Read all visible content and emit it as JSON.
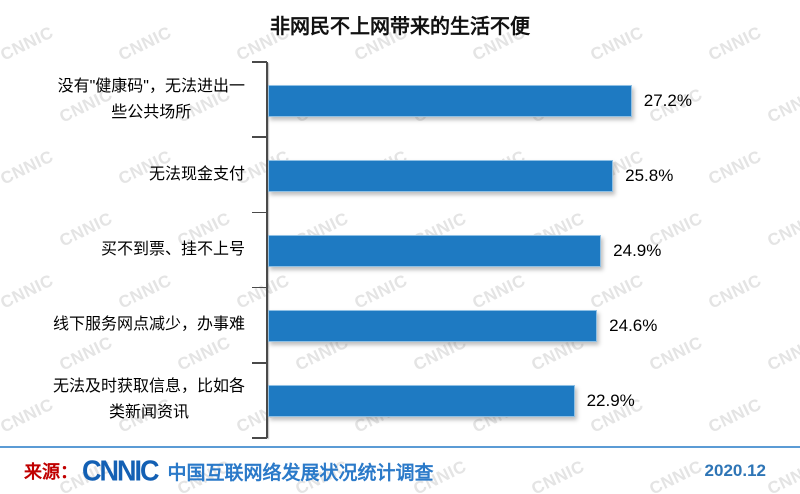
{
  "title": "非网民不上网带来的生活不便",
  "chart_data": {
    "type": "bar",
    "orientation": "horizontal",
    "title": "非网民不上网带来的生活不便",
    "categories": [
      "没有\"健康码\"，无法进出一些公共场所",
      "无法现金支付",
      "买不到票、挂不上号",
      "线下服务网点减少，办事难",
      "无法及时获取信息，比如各类新闻资讯"
    ],
    "categories_wrapped": [
      "没有\"健康码\"，无法进出一\n些公共场所",
      "无法现金支付",
      "买不到票、挂不上号",
      "线下服务网点减少，办事难",
      "无法及时获取信息，比如各\n类新闻资讯"
    ],
    "values": [
      27.2,
      25.8,
      24.9,
      24.6,
      22.9
    ],
    "data_labels": [
      "27.2%",
      "25.8%",
      "24.9%",
      "24.6%",
      "22.9%"
    ],
    "unit": "%",
    "xlim": [
      0,
      30
    ],
    "grid": false,
    "legend": false,
    "bar_color": "#1e7ac2",
    "axis_color": "#4a4a4a"
  },
  "watermark": {
    "text": "CNNIC",
    "color": "#e4e4e4"
  },
  "footer": {
    "source_prefix": "来源：",
    "logo_text": "CNNIC",
    "source_name": "中国互联网络发展状况统计调查",
    "date": "2020.12",
    "divider_color": "#5b9bd5"
  }
}
